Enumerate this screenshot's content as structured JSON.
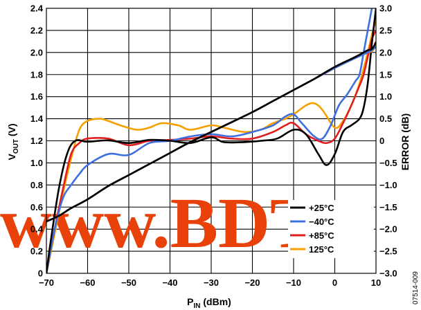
{
  "chart_data": {
    "type": "line",
    "xlabel_main": "P",
    "xlabel_sub": "IN",
    "xlabel_unit": " (dBm)",
    "ylabel_main": "V",
    "ylabel_sub": "OUT",
    "ylabel_unit": " (V)",
    "y2label": "ERROR (dB)",
    "xlim": [
      -70,
      10
    ],
    "ylim": [
      0,
      2.4
    ],
    "y2lim": [
      -3.0,
      3.0
    ],
    "x_ticks": [
      "−70",
      "−60",
      "−50",
      "−40",
      "−30",
      "−20",
      "−10",
      "0",
      "10"
    ],
    "y_ticks": [
      "0",
      "0.2",
      "0.4",
      "0.6",
      "0.8",
      "1.0",
      "1.2",
      "1.4",
      "1.6",
      "1.8",
      "2.0",
      "2.2",
      "2.4"
    ],
    "y2_ticks": [
      "−3.0",
      "−2.5",
      "−2.0",
      "−1.5",
      "−1.0",
      "−0.5",
      "0",
      "0.5",
      "1.0",
      "1.5",
      "2.0",
      "2.5",
      "3.0"
    ],
    "grid": true,
    "legend_position": "bottom-right",
    "series": [
      {
        "name": "+25°C",
        "color": "#000000",
        "vout": [
          [
            -70,
            0.47
          ],
          [
            -67,
            0.52
          ],
          [
            -64,
            0.59
          ],
          [
            -60,
            0.67
          ],
          [
            -55,
            0.79
          ],
          [
            -50,
            0.89
          ],
          [
            -45,
            0.99
          ],
          [
            -40,
            1.09
          ],
          [
            -35,
            1.19
          ],
          [
            -30,
            1.28
          ],
          [
            -25,
            1.37
          ],
          [
            -20,
            1.46
          ],
          [
            -15,
            1.56
          ],
          [
            -10,
            1.66
          ],
          [
            -5,
            1.76
          ],
          [
            0,
            1.87
          ],
          [
            5,
            1.96
          ],
          [
            8,
            2.02
          ],
          [
            9,
            2.03
          ],
          [
            10,
            2.09
          ]
        ],
        "error": [
          [
            -70,
            -3.0
          ],
          [
            -69,
            -2.3
          ],
          [
            -67,
            -1.1
          ],
          [
            -65,
            -0.3
          ],
          [
            -63,
            0.0
          ],
          [
            -60,
            -0.02
          ],
          [
            -55,
            0.01
          ],
          [
            -50,
            -0.05
          ],
          [
            -45,
            0.02
          ],
          [
            -40,
            0.0
          ],
          [
            -35,
            -0.05
          ],
          [
            -30,
            0.08
          ],
          [
            -27,
            -0.03
          ],
          [
            -22,
            -0.03
          ],
          [
            -18,
            0.0
          ],
          [
            -14,
            0.05
          ],
          [
            -10,
            0.25
          ],
          [
            -7,
            0.15
          ],
          [
            -4,
            -0.3
          ],
          [
            -2,
            -0.55
          ],
          [
            0,
            -0.3
          ],
          [
            2,
            0.2
          ],
          [
            4,
            0.35
          ],
          [
            6,
            0.5
          ],
          [
            7,
            0.75
          ],
          [
            8,
            1.3
          ],
          [
            9,
            2.2
          ],
          [
            10,
            3.0
          ]
        ]
      },
      {
        "name": "−40°C",
        "color": "#3e6fe0",
        "vout": [
          [
            -70,
            0.47
          ],
          [
            -67,
            0.52
          ],
          [
            -64,
            0.59
          ],
          [
            -60,
            0.67
          ],
          [
            -55,
            0.79
          ],
          [
            -50,
            0.89
          ],
          [
            -45,
            0.99
          ],
          [
            -40,
            1.09
          ],
          [
            -35,
            1.19
          ],
          [
            -30,
            1.28
          ],
          [
            -25,
            1.37
          ],
          [
            -20,
            1.46
          ],
          [
            -15,
            1.56
          ],
          [
            -10,
            1.66
          ],
          [
            -5,
            1.76
          ],
          [
            0,
            1.86
          ],
          [
            5,
            1.95
          ],
          [
            8,
            2.0
          ],
          [
            9,
            2.02
          ],
          [
            10,
            2.05
          ]
        ],
        "error": [
          [
            -70,
            -3.0
          ],
          [
            -68,
            -2.0
          ],
          [
            -66,
            -1.3
          ],
          [
            -64,
            -1.0
          ],
          [
            -62,
            -0.75
          ],
          [
            -60,
            -0.55
          ],
          [
            -55,
            -0.3
          ],
          [
            -50,
            -0.32
          ],
          [
            -45,
            -0.05
          ],
          [
            -40,
            0.0
          ],
          [
            -35,
            0.1
          ],
          [
            -30,
            0.15
          ],
          [
            -25,
            0.1
          ],
          [
            -20,
            0.2
          ],
          [
            -15,
            0.35
          ],
          [
            -12,
            0.55
          ],
          [
            -10,
            0.6
          ],
          [
            -8,
            0.4
          ],
          [
            -5,
            0.1
          ],
          [
            -3,
            0.05
          ],
          [
            -1,
            0.35
          ],
          [
            1,
            0.8
          ],
          [
            3,
            1.05
          ],
          [
            5,
            1.35
          ],
          [
            6,
            1.5
          ],
          [
            7,
            2.0
          ],
          [
            8,
            2.5
          ],
          [
            9,
            3.0
          ]
        ]
      },
      {
        "name": "+85°C",
        "color": "#e21d1d",
        "vout": [
          [
            -70,
            0.47
          ],
          [
            -67,
            0.52
          ],
          [
            -64,
            0.59
          ],
          [
            -60,
            0.67
          ],
          [
            -55,
            0.79
          ],
          [
            -50,
            0.89
          ],
          [
            -45,
            0.99
          ],
          [
            -40,
            1.09
          ],
          [
            -35,
            1.19
          ],
          [
            -30,
            1.28
          ],
          [
            -25,
            1.37
          ],
          [
            -20,
            1.46
          ],
          [
            -15,
            1.56
          ],
          [
            -10,
            1.66
          ],
          [
            -5,
            1.76
          ],
          [
            0,
            1.86
          ],
          [
            5,
            1.96
          ],
          [
            8,
            2.01
          ],
          [
            9,
            2.02
          ],
          [
            10,
            2.1
          ]
        ],
        "error": [
          [
            -70,
            -3.0
          ],
          [
            -68,
            -2.0
          ],
          [
            -66,
            -1.1
          ],
          [
            -64,
            -0.3
          ],
          [
            -62,
            -0.05
          ],
          [
            -60,
            0.05
          ],
          [
            -55,
            0.05
          ],
          [
            -50,
            -0.1
          ],
          [
            -45,
            0.0
          ],
          [
            -40,
            0.02
          ],
          [
            -35,
            0.05
          ],
          [
            -30,
            0.1
          ],
          [
            -25,
            0.05
          ],
          [
            -20,
            0.05
          ],
          [
            -15,
            0.2
          ],
          [
            -12,
            0.35
          ],
          [
            -10,
            0.4
          ],
          [
            -7,
            0.15
          ],
          [
            -4,
            0.0
          ],
          [
            -2,
            -0.05
          ],
          [
            0,
            0.05
          ],
          [
            2,
            0.4
          ],
          [
            4,
            0.8
          ],
          [
            6,
            1.25
          ],
          [
            7,
            1.5
          ],
          [
            8,
            1.9
          ],
          [
            9,
            2.3
          ],
          [
            10,
            2.5
          ]
        ]
      },
      {
        "name": "125°C",
        "color": "#f5a000",
        "vout": [
          [
            -70,
            0.47
          ],
          [
            -67,
            0.52
          ],
          [
            -64,
            0.59
          ],
          [
            -60,
            0.67
          ],
          [
            -55,
            0.79
          ],
          [
            -50,
            0.89
          ],
          [
            -45,
            0.99
          ],
          [
            -40,
            1.09
          ],
          [
            -35,
            1.19
          ],
          [
            -30,
            1.28
          ],
          [
            -25,
            1.37
          ],
          [
            -20,
            1.46
          ],
          [
            -15,
            1.56
          ],
          [
            -10,
            1.66
          ],
          [
            -5,
            1.76
          ],
          [
            0,
            1.86
          ],
          [
            5,
            1.95
          ],
          [
            8,
            2.0
          ],
          [
            9,
            2.01
          ],
          [
            10,
            2.06
          ]
        ],
        "error": [
          [
            -70,
            -3.0
          ],
          [
            -68,
            -2.1
          ],
          [
            -66,
            -1.2
          ],
          [
            -64,
            -0.4
          ],
          [
            -62,
            0.25
          ],
          [
            -60,
            0.45
          ],
          [
            -57,
            0.5
          ],
          [
            -55,
            0.45
          ],
          [
            -52,
            0.35
          ],
          [
            -48,
            0.25
          ],
          [
            -45,
            0.3
          ],
          [
            -42,
            0.4
          ],
          [
            -38,
            0.35
          ],
          [
            -35,
            0.25
          ],
          [
            -30,
            0.35
          ],
          [
            -27,
            0.3
          ],
          [
            -22,
            0.2
          ],
          [
            -18,
            0.25
          ],
          [
            -15,
            0.4
          ],
          [
            -12,
            0.5
          ],
          [
            -10,
            0.6
          ],
          [
            -7,
            0.8
          ],
          [
            -5,
            0.85
          ],
          [
            -3,
            0.7
          ],
          [
            0,
            0.3
          ],
          [
            2,
            0.45
          ],
          [
            4,
            0.8
          ],
          [
            6,
            1.3
          ],
          [
            8,
            2.0
          ],
          [
            9,
            2.4
          ],
          [
            10,
            2.7
          ]
        ]
      }
    ]
  },
  "watermark": "www.BDTI",
  "figure_id": "07514-009"
}
